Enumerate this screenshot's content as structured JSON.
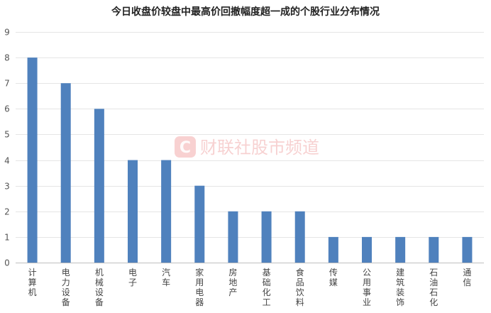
{
  "chart_data": {
    "type": "bar",
    "title": "今日收盘价较盘中最高价回撤幅度超一成的个股行业分布情况",
    "categories": [
      "计算机",
      "电力设备",
      "机械设备",
      "电子",
      "汽车",
      "家用电器",
      "房地产",
      "基础化工",
      "食品饮料",
      "传媒",
      "公用事业",
      "建筑装饰",
      "石油石化",
      "通信"
    ],
    "values": [
      8,
      7,
      6,
      4,
      4,
      3,
      2,
      2,
      2,
      1,
      1,
      1,
      1,
      1
    ],
    "ylim": [
      0,
      9
    ],
    "yticks": [
      0,
      1,
      2,
      3,
      4,
      5,
      6,
      7,
      8,
      9
    ],
    "xlabel": "",
    "ylabel": "",
    "grid": true,
    "bar_color": "#4f81bd",
    "grid_color": "#e5e5e5"
  },
  "watermark": {
    "text": "财联社股市频道",
    "logo_letter": "C",
    "color": "#e53935"
  }
}
